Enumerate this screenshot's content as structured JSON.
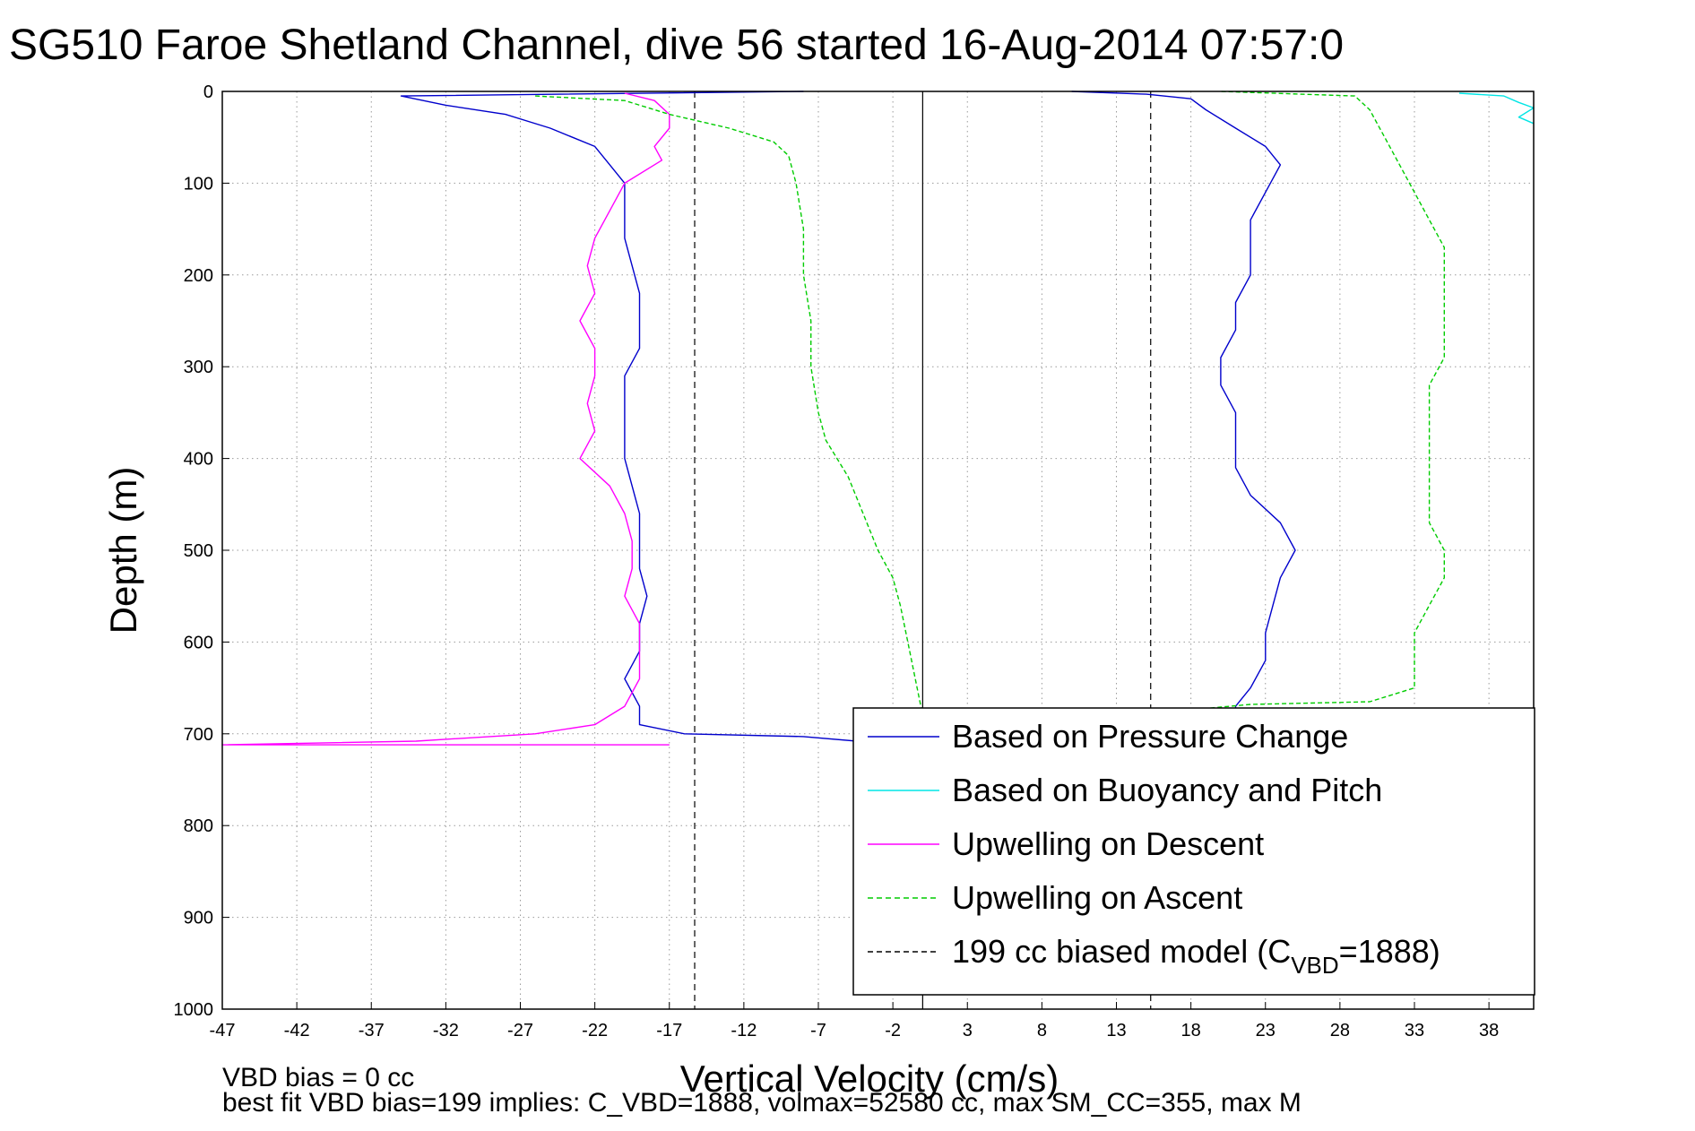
{
  "chart_data": {
    "type": "line",
    "title": "SG510 Faroe Shetland Channel, dive 56 started 16-Aug-2014 07:57:0",
    "xlabel": "Vertical Velocity (cm/s)",
    "ylabel": "Depth (m)",
    "xlim": [
      -47,
      41
    ],
    "ylim": [
      0,
      1000
    ],
    "y_reversed": true,
    "grid": true,
    "x_ticks": [
      -47,
      -42,
      -37,
      -32,
      -27,
      -22,
      -17,
      -12,
      -7,
      -2,
      3,
      8,
      13,
      18,
      23,
      28,
      33,
      38
    ],
    "y_ticks": [
      0,
      100,
      200,
      300,
      400,
      500,
      600,
      700,
      800,
      900,
      1000
    ],
    "legend_position": "bottom-right",
    "notes": [
      "VBD bias = 0 cc",
      "best fit VBD bias=199 implies: C_VBD=1888, volmax=52580 cc, max SM_CC=355, max M"
    ],
    "reference_lines": [
      {
        "name": "zero",
        "x": 0,
        "color": "#000000",
        "style": "solid"
      },
      {
        "name": "model_descent",
        "x": -15.3,
        "color": "#000000",
        "style": "dashed"
      },
      {
        "name": "model_ascent",
        "x": 15.3,
        "color": "#000000",
        "style": "dashed"
      }
    ],
    "series": [
      {
        "name": "Based on Pressure Change",
        "color": "#0000cc",
        "style": "solid",
        "points": [
          [
            -8,
            0
          ],
          [
            -35,
            5
          ],
          [
            -32,
            15
          ],
          [
            -28,
            25
          ],
          [
            -25,
            40
          ],
          [
            -22,
            60
          ],
          [
            -21,
            80
          ],
          [
            -20,
            100
          ],
          [
            -20,
            130
          ],
          [
            -20,
            160
          ],
          [
            -19.5,
            190
          ],
          [
            -19,
            220
          ],
          [
            -19,
            250
          ],
          [
            -19,
            280
          ],
          [
            -20,
            310
          ],
          [
            -20,
            340
          ],
          [
            -20,
            370
          ],
          [
            -20,
            400
          ],
          [
            -19.5,
            430
          ],
          [
            -19,
            460
          ],
          [
            -19,
            490
          ],
          [
            -19,
            520
          ],
          [
            -18.5,
            550
          ],
          [
            -19,
            580
          ],
          [
            -19,
            610
          ],
          [
            -20,
            640
          ],
          [
            -19,
            670
          ],
          [
            -19,
            690
          ],
          [
            -16,
            700
          ],
          [
            -8,
            703
          ],
          [
            -3,
            710
          ],
          [
            0,
            711
          ],
          [
            3,
            712
          ],
          [
            10,
            705
          ],
          [
            18,
            700
          ],
          [
            21,
            690
          ],
          [
            21,
            670
          ],
          [
            22,
            650
          ],
          [
            23,
            620
          ],
          [
            23,
            590
          ],
          [
            23.5,
            560
          ],
          [
            24,
            530
          ],
          [
            25,
            500
          ],
          [
            24,
            470
          ],
          [
            22,
            440
          ],
          [
            21,
            410
          ],
          [
            21,
            380
          ],
          [
            21,
            350
          ],
          [
            20,
            320
          ],
          [
            20,
            290
          ],
          [
            21,
            260
          ],
          [
            21,
            230
          ],
          [
            22,
            200
          ],
          [
            22,
            170
          ],
          [
            22,
            140
          ],
          [
            23,
            110
          ],
          [
            24,
            80
          ],
          [
            23,
            60
          ],
          [
            21,
            40
          ],
          [
            19,
            20
          ],
          [
            18,
            8
          ],
          [
            15,
            3
          ],
          [
            10,
            0
          ]
        ]
      },
      {
        "name": "Based on Buoyancy and Pitch",
        "color": "#00e5e5",
        "style": "solid",
        "points": [
          [
            36,
            2
          ],
          [
            39,
            5
          ],
          [
            40,
            12
          ],
          [
            41,
            18
          ],
          [
            40,
            28
          ],
          [
            41,
            35
          ]
        ]
      },
      {
        "name": "Upwelling on Descent",
        "color": "#ff00ff",
        "style": "solid",
        "points": [
          [
            -20,
            2
          ],
          [
            -18,
            10
          ],
          [
            -17,
            25
          ],
          [
            -17,
            40
          ],
          [
            -18,
            60
          ],
          [
            -17.5,
            75
          ],
          [
            -20,
            100
          ],
          [
            -21,
            130
          ],
          [
            -22,
            160
          ],
          [
            -22.5,
            190
          ],
          [
            -22,
            220
          ],
          [
            -23,
            250
          ],
          [
            -22,
            280
          ],
          [
            -22,
            310
          ],
          [
            -22.5,
            340
          ],
          [
            -22,
            370
          ],
          [
            -23,
            400
          ],
          [
            -21,
            430
          ],
          [
            -20,
            460
          ],
          [
            -19.5,
            490
          ],
          [
            -19.5,
            520
          ],
          [
            -20,
            550
          ],
          [
            -19,
            580
          ],
          [
            -19,
            610
          ],
          [
            -19,
            640
          ],
          [
            -20,
            670
          ],
          [
            -22,
            690
          ],
          [
            -26,
            700
          ],
          [
            -34,
            708
          ],
          [
            -47,
            712
          ],
          [
            -17,
            712
          ]
        ]
      },
      {
        "name": "Upwelling on Ascent",
        "color": "#00cc00",
        "style": "dashed",
        "points": [
          [
            -26,
            5
          ],
          [
            -20,
            10
          ],
          [
            -17,
            25
          ],
          [
            -13,
            40
          ],
          [
            -10,
            55
          ],
          [
            -9,
            70
          ],
          [
            -8.5,
            100
          ],
          [
            -8,
            150
          ],
          [
            -8,
            200
          ],
          [
            -7.5,
            250
          ],
          [
            -7.5,
            300
          ],
          [
            -7,
            350
          ],
          [
            -6.5,
            380
          ],
          [
            -5,
            420
          ],
          [
            -4,
            460
          ],
          [
            -3,
            500
          ],
          [
            -2,
            530
          ],
          [
            -1.5,
            560
          ],
          [
            -1,
            600
          ],
          [
            -0.5,
            640
          ],
          [
            0,
            680
          ],
          [
            0,
            700
          ],
          [
            22,
            668
          ],
          [
            30,
            665
          ],
          [
            33,
            650
          ],
          [
            33,
            620
          ],
          [
            33,
            590
          ],
          [
            34,
            560
          ],
          [
            35,
            530
          ],
          [
            35,
            500
          ],
          [
            34,
            470
          ],
          [
            34,
            440
          ],
          [
            34,
            410
          ],
          [
            34,
            380
          ],
          [
            34,
            350
          ],
          [
            34,
            320
          ],
          [
            35,
            290
          ],
          [
            35,
            260
          ],
          [
            35,
            230
          ],
          [
            35,
            200
          ],
          [
            35,
            170
          ],
          [
            34,
            140
          ],
          [
            33,
            110
          ],
          [
            32,
            80
          ],
          [
            31,
            50
          ],
          [
            30,
            20
          ],
          [
            29,
            5
          ],
          [
            20,
            0
          ]
        ]
      },
      {
        "name": "199 cc biased model (C",
        "name_sub": "VBD",
        "name_suffix": "=1888)",
        "color": "#000000",
        "style": "dashed",
        "points": []
      }
    ]
  }
}
